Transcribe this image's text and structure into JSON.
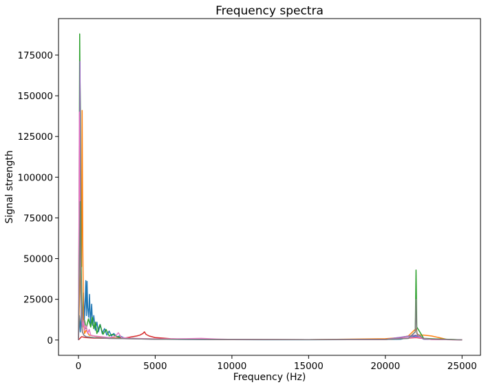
{
  "chart_data": {
    "type": "line",
    "title": "Frequency spectra",
    "xlabel": "Frequency (Hz)",
    "ylabel": "Signal strength",
    "xlim": [
      -1300,
      26200
    ],
    "ylim": [
      -9400,
      197400
    ],
    "xticks": [
      0,
      5000,
      10000,
      15000,
      20000,
      25000
    ],
    "yticks": [
      0,
      25000,
      50000,
      75000,
      100000,
      125000,
      150000,
      175000
    ],
    "grid": false,
    "legend": "none",
    "series": [
      {
        "color": "#1f77b4",
        "points": [
          [
            0,
            0
          ],
          [
            60,
            15000
          ],
          [
            120,
            5000
          ],
          [
            200,
            20000
          ],
          [
            260,
            8000
          ],
          [
            320,
            29000
          ],
          [
            380,
            12000
          ],
          [
            440,
            25000
          ],
          [
            480,
            36500
          ],
          [
            520,
            15000
          ],
          [
            560,
            36000
          ],
          [
            600,
            20000
          ],
          [
            660,
            14000
          ],
          [
            720,
            28000
          ],
          [
            780,
            10000
          ],
          [
            860,
            22000
          ],
          [
            920,
            9000
          ],
          [
            1000,
            15000
          ],
          [
            1100,
            6000
          ],
          [
            1200,
            11000
          ],
          [
            1300,
            5000
          ],
          [
            1420,
            9500
          ],
          [
            1550,
            4000
          ],
          [
            1700,
            7000
          ],
          [
            1850,
            3000
          ],
          [
            2000,
            5500
          ],
          [
            2150,
            2500
          ],
          [
            2300,
            4000
          ],
          [
            2500,
            2000
          ],
          [
            2700,
            2500
          ],
          [
            3000,
            1200
          ],
          [
            3500,
            1000
          ],
          [
            4000,
            800
          ],
          [
            5000,
            500
          ],
          [
            7000,
            300
          ],
          [
            10000,
            200
          ],
          [
            15000,
            150
          ],
          [
            20000,
            300
          ],
          [
            21000,
            500
          ],
          [
            22000,
            2500
          ],
          [
            22500,
            600
          ],
          [
            23500,
            300
          ],
          [
            25000,
            100
          ]
        ]
      },
      {
        "color": "#ff7f0e",
        "points": [
          [
            0,
            0
          ],
          [
            80,
            30000
          ],
          [
            150,
            50000
          ],
          [
            200,
            45000
          ],
          [
            240,
            141000
          ],
          [
            280,
            60000
          ],
          [
            330,
            10000
          ],
          [
            400,
            4000
          ],
          [
            500,
            6000
          ],
          [
            700,
            3000
          ],
          [
            1000,
            2500
          ],
          [
            1500,
            1500
          ],
          [
            2000,
            1500
          ],
          [
            3000,
            1000
          ],
          [
            5000,
            600
          ],
          [
            10000,
            300
          ],
          [
            15000,
            200
          ],
          [
            20000,
            800
          ],
          [
            21000,
            1500
          ],
          [
            21500,
            2500
          ],
          [
            22000,
            7000
          ],
          [
            22100,
            3000
          ],
          [
            22500,
            3000
          ],
          [
            23000,
            2500
          ],
          [
            23500,
            1500
          ],
          [
            24000,
            400
          ],
          [
            25000,
            100
          ]
        ]
      },
      {
        "color": "#2ca02c",
        "points": [
          [
            0,
            0
          ],
          [
            50,
            100000
          ],
          [
            80,
            188000
          ],
          [
            100,
            160000
          ],
          [
            130,
            140000
          ],
          [
            170,
            50000
          ],
          [
            230,
            14000
          ],
          [
            300,
            9000
          ],
          [
            400,
            12000
          ],
          [
            500,
            7000
          ],
          [
            650,
            13000
          ],
          [
            800,
            8000
          ],
          [
            900,
            14000
          ],
          [
            1000,
            7000
          ],
          [
            1100,
            11000
          ],
          [
            1200,
            4000
          ],
          [
            1400,
            9500
          ],
          [
            1600,
            3500
          ],
          [
            1800,
            6500
          ],
          [
            2000,
            2500
          ],
          [
            2200,
            3500
          ],
          [
            2600,
            1800
          ],
          [
            3000,
            1200
          ],
          [
            4000,
            800
          ],
          [
            6000,
            500
          ],
          [
            10000,
            300
          ],
          [
            15000,
            200
          ],
          [
            20000,
            400
          ],
          [
            21500,
            1000
          ],
          [
            21950,
            5000
          ],
          [
            22000,
            43000
          ],
          [
            22050,
            8000
          ],
          [
            22500,
            1000
          ],
          [
            25000,
            100
          ]
        ]
      },
      {
        "color": "#d62728",
        "points": [
          [
            0,
            0
          ],
          [
            200,
            2000
          ],
          [
            500,
            1500
          ],
          [
            1000,
            1200
          ],
          [
            2000,
            1000
          ],
          [
            3000,
            1200
          ],
          [
            3500,
            2000
          ],
          [
            3800,
            2500
          ],
          [
            4000,
            3000
          ],
          [
            4200,
            4000
          ],
          [
            4300,
            5000
          ],
          [
            4400,
            3500
          ],
          [
            4600,
            2500
          ],
          [
            5000,
            1500
          ],
          [
            5500,
            1200
          ],
          [
            6000,
            800
          ],
          [
            7000,
            500
          ],
          [
            10000,
            300
          ],
          [
            15000,
            200
          ],
          [
            20000,
            300
          ],
          [
            22000,
            1500
          ],
          [
            23000,
            300
          ],
          [
            25000,
            100
          ]
        ]
      },
      {
        "color": "#9467bd",
        "points": [
          [
            0,
            0
          ],
          [
            40,
            48000
          ],
          [
            70,
            100000
          ],
          [
            100,
            171000
          ],
          [
            130,
            60000
          ],
          [
            160,
            35000
          ],
          [
            200,
            12000
          ],
          [
            260,
            5000
          ],
          [
            350,
            3000
          ],
          [
            500,
            2000
          ],
          [
            1000,
            1500
          ],
          [
            2000,
            1000
          ],
          [
            5000,
            500
          ],
          [
            10000,
            300
          ],
          [
            15000,
            200
          ],
          [
            20000,
            400
          ],
          [
            22000,
            3000
          ],
          [
            22500,
            500
          ],
          [
            25000,
            100
          ]
        ]
      },
      {
        "color": "#e377c2",
        "points": [
          [
            0,
            0
          ],
          [
            30,
            65000
          ],
          [
            60,
            140000
          ],
          [
            90,
            104000
          ],
          [
            130,
            50000
          ],
          [
            170,
            25000
          ],
          [
            220,
            14000
          ],
          [
            280,
            8000
          ],
          [
            350,
            12000
          ],
          [
            400,
            6000
          ],
          [
            500,
            9000
          ],
          [
            600,
            4000
          ],
          [
            700,
            6500
          ],
          [
            800,
            3000
          ],
          [
            1000,
            2500
          ],
          [
            1500,
            2000
          ],
          [
            2000,
            1500
          ],
          [
            2400,
            2200
          ],
          [
            2600,
            4500
          ],
          [
            2800,
            1500
          ],
          [
            3500,
            1000
          ],
          [
            5000,
            700
          ],
          [
            7000,
            800
          ],
          [
            8000,
            1000
          ],
          [
            9000,
            600
          ],
          [
            10000,
            400
          ],
          [
            15000,
            250
          ],
          [
            20000,
            300
          ],
          [
            22000,
            1800
          ],
          [
            23000,
            300
          ],
          [
            25000,
            100
          ]
        ]
      },
      {
        "color": "#7f7f7f",
        "points": [
          [
            0,
            0
          ],
          [
            50,
            40000
          ],
          [
            80,
            60000
          ],
          [
            110,
            85000
          ],
          [
            140,
            40000
          ],
          [
            180,
            12000
          ],
          [
            250,
            5000
          ],
          [
            350,
            3000
          ],
          [
            500,
            2000
          ],
          [
            1000,
            1500
          ],
          [
            2000,
            1000
          ],
          [
            5000,
            500
          ],
          [
            10000,
            300
          ],
          [
            15000,
            200
          ],
          [
            20000,
            400
          ],
          [
            21500,
            1000
          ],
          [
            21950,
            5000
          ],
          [
            22000,
            25000
          ],
          [
            22050,
            4000
          ],
          [
            22500,
            800
          ],
          [
            25000,
            100
          ]
        ]
      }
    ]
  }
}
